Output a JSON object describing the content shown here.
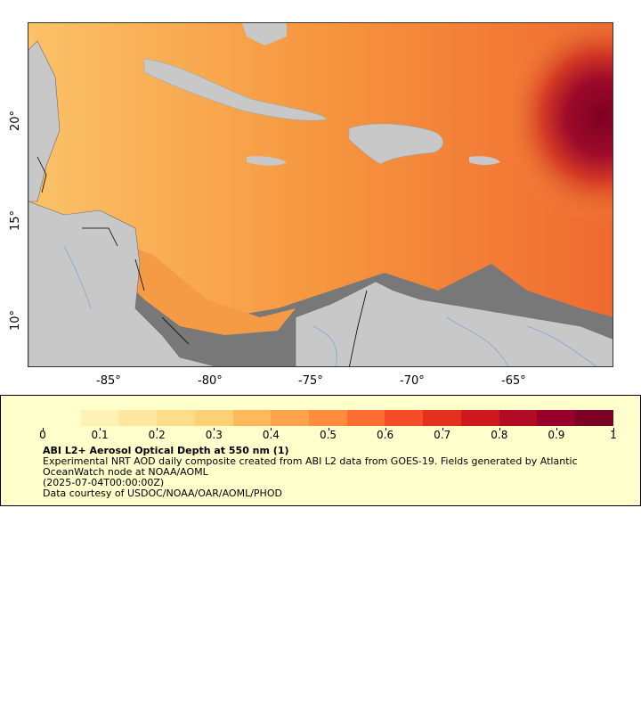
{
  "map": {
    "lon_labels": [
      "-85°",
      "-80°",
      "-75°",
      "-70°",
      "-65°"
    ],
    "lat_labels": [
      "20°",
      "15°",
      "10°"
    ],
    "colors": {
      "ocean_base": "#f7a64a",
      "land": "#c8c8c8",
      "nodata": "#787878",
      "high": "#8b0025"
    }
  },
  "legend": {
    "colorbar_ticks": [
      "0",
      "0.1",
      "0.2",
      "0.3",
      "0.4",
      "0.5",
      "0.6",
      "0.7",
      "0.8",
      "0.9",
      "1"
    ],
    "title": "ABI L2+ Aerosol Optical Depth at 550 nm (1)",
    "line1": "Experimental NRT AOD daily composite created from ABI L2 data from GOES-19. Fields generated by Atlantic",
    "line2": "OceanWatch node at NOAA/AOML",
    "line3": "(2025-07-04T00:00:00Z)",
    "line4": "Data courtesy of USDOC/NOAA/OAR/AOML/PHOD"
  }
}
